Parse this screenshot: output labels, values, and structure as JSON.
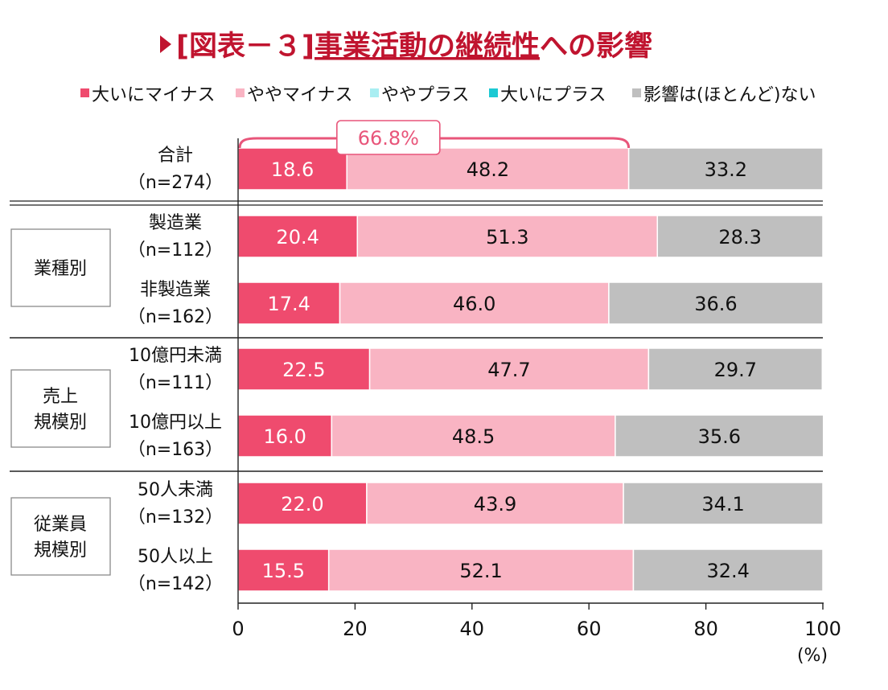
{
  "title": {
    "prefix": "[図表－３]",
    "main": "事業活動の継続性",
    "suffix": "への影響"
  },
  "colors": {
    "title": "#c0142f",
    "title_marker": "#c0142f"
  },
  "chart_data": {
    "type": "bar",
    "orientation": "horizontal",
    "stacked": true,
    "unit": "(%)",
    "xlim": [
      0,
      100
    ],
    "x_ticks": [
      0,
      20,
      40,
      60,
      80,
      100
    ],
    "legend": [
      {
        "name": "大いにマイナス",
        "color": "#ef4b6e"
      },
      {
        "name": "ややマイナス",
        "color": "#f9b4c3"
      },
      {
        "name": "ややプラス",
        "color": "#a9eef2"
      },
      {
        "name": "大いにプラス",
        "color": "#1cc9d3"
      },
      {
        "name": "影響は(ほとんど)ない",
        "color": "#bfbfbf"
      }
    ],
    "legend_position": "top",
    "groups": [
      {
        "label": "",
        "rows": [
          0
        ]
      },
      {
        "label": "業種別",
        "rows": [
          1,
          2
        ]
      },
      {
        "label": "売上\n規模別",
        "rows": [
          3,
          4
        ]
      },
      {
        "label": "従業員\n規模別",
        "rows": [
          5,
          6
        ]
      }
    ],
    "categories": [
      {
        "name": "合計",
        "n": "（n=274）"
      },
      {
        "name": "製造業",
        "n": "（n=112）"
      },
      {
        "name": "非製造業",
        "n": "（n=162）"
      },
      {
        "name": "10億円未満",
        "n": "（n=111）"
      },
      {
        "name": "10億円以上",
        "n": "（n=163）"
      },
      {
        "name": "50人未満",
        "n": "（n=132）"
      },
      {
        "name": "50人以上",
        "n": "（n=142）"
      }
    ],
    "series": [
      {
        "name": "大いにマイナス",
        "color": "#ef4b6e",
        "label_color": "#ffffff",
        "values": [
          18.6,
          20.4,
          17.4,
          22.5,
          16.0,
          22.0,
          15.5
        ],
        "labels": [
          "18.6",
          "20.4",
          "17.4",
          "22.5",
          "16.0",
          "22.0",
          "15.5"
        ]
      },
      {
        "name": "ややマイナス",
        "color": "#f9b4c3",
        "label_color": "#111111",
        "values": [
          48.2,
          51.3,
          46.0,
          47.7,
          48.5,
          43.9,
          52.1
        ],
        "labels": [
          "48.2",
          "51.3",
          "46.0",
          "47.7",
          "48.5",
          "43.9",
          "52.1"
        ]
      },
      {
        "name": "影響は(ほとんど)ない",
        "color": "#bfbfbf",
        "label_color": "#111111",
        "values": [
          33.2,
          28.3,
          36.6,
          29.7,
          35.6,
          34.1,
          32.4
        ],
        "labels": [
          "33.2",
          "28.3",
          "36.6",
          "29.7",
          "35.6",
          "34.1",
          "32.4"
        ]
      }
    ],
    "annotation": {
      "text": "66.8%",
      "row": 0,
      "from": 0,
      "to": 66.8,
      "color": "#e8557a"
    }
  }
}
